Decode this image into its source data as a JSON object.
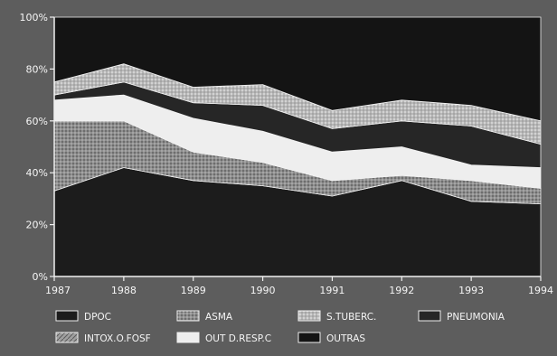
{
  "chart_data": {
    "type": "area",
    "stacked": true,
    "percent_stacked": true,
    "categories": [
      "1987",
      "1988",
      "1989",
      "1990",
      "1991",
      "1992",
      "1993",
      "1994"
    ],
    "y_ticks": [
      "0%",
      "20%",
      "40%",
      "60%",
      "80%",
      "100%"
    ],
    "ylim": [
      0,
      100
    ],
    "legend_position": "bottom",
    "series": [
      {
        "name": "DPOC",
        "key": "dpoc",
        "color": "#1c1c1c",
        "values": [
          33,
          42,
          37,
          35,
          31,
          37,
          29,
          28
        ]
      },
      {
        "name": "ASMA",
        "key": "asma",
        "color": "#8c8c8c",
        "values": [
          27,
          18,
          11,
          9,
          6,
          2,
          8,
          6
        ]
      },
      {
        "name": "INTOX.O.FOSF",
        "key": "intox",
        "color": "#a8a8a8",
        "values": [
          0,
          0,
          0,
          0,
          0,
          0,
          0,
          0
        ]
      },
      {
        "name": "OUT D.RESP.C",
        "key": "outd",
        "color": "#eeeeee",
        "values": [
          8,
          10,
          13,
          12,
          11,
          11,
          6,
          8
        ]
      },
      {
        "name": "PNEUMONIA",
        "key": "pneu",
        "color": "#262626",
        "values": [
          2,
          5,
          6,
          10,
          9,
          10,
          15,
          9
        ]
      },
      {
        "name": "S.TUBERC.",
        "key": "stub",
        "color": "#c8c8c8",
        "values": [
          5,
          7,
          6,
          8,
          7,
          8,
          8,
          9
        ]
      },
      {
        "name": "OUTRAS",
        "key": "outras",
        "color": "#141414",
        "values": [
          25,
          18,
          27,
          26,
          36,
          32,
          34,
          40
        ]
      }
    ]
  },
  "legend": [
    {
      "label": "DPOC",
      "key": "dpoc"
    },
    {
      "label": "ASMA",
      "key": "asma"
    },
    {
      "label": "S.TUBERC.",
      "key": "stub"
    },
    {
      "label": "PNEUMONIA",
      "key": "pneu"
    },
    {
      "label": "INTOX.O.FOSF",
      "key": "intox"
    },
    {
      "label": "OUT D.RESP.C",
      "key": "outd"
    },
    {
      "label": "OUTRAS",
      "key": "outras"
    }
  ]
}
